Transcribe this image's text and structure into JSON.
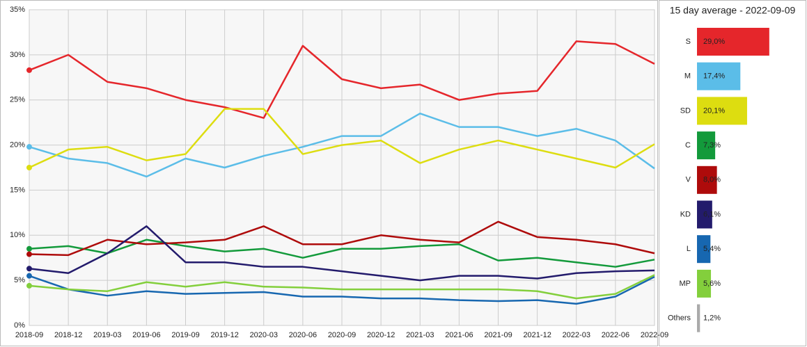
{
  "chart_data": [
    {
      "type": "line",
      "x": [
        "2018-09",
        "2018-12",
        "2019-03",
        "2019-06",
        "2019-09",
        "2019-12",
        "2020-03",
        "2020-06",
        "2020-09",
        "2020-12",
        "2021-03",
        "2021-06",
        "2021-09",
        "2021-12",
        "2022-03",
        "2022-06",
        "2022-09"
      ],
      "ylim": [
        0,
        35
      ],
      "yticks": [
        {
          "value": 0,
          "label": "0%"
        },
        {
          "value": 5,
          "label": "5%"
        },
        {
          "value": 10,
          "label": "10%"
        },
        {
          "value": 15,
          "label": "15%"
        },
        {
          "value": 20,
          "label": "20%"
        },
        {
          "value": 25,
          "label": "25%"
        },
        {
          "value": 30,
          "label": "30%"
        },
        {
          "value": 35,
          "label": "35%"
        }
      ],
      "grid": true,
      "series": [
        {
          "name": "S",
          "color": "#e5262b",
          "values": [
            28.3,
            30.0,
            27.0,
            26.3,
            25.0,
            24.2,
            23.0,
            31.0,
            27.3,
            26.3,
            26.7,
            25.0,
            25.7,
            26.0,
            31.5,
            31.2,
            29.0
          ]
        },
        {
          "name": "M",
          "color": "#5bbde8",
          "values": [
            19.8,
            18.5,
            18.0,
            16.5,
            18.5,
            17.5,
            18.8,
            19.8,
            21.0,
            21.0,
            23.5,
            22.0,
            22.0,
            21.0,
            21.8,
            20.5,
            17.4
          ]
        },
        {
          "name": "SD",
          "color": "#dddd10",
          "values": [
            17.5,
            19.5,
            19.8,
            18.3,
            19.0,
            24.0,
            24.0,
            19.0,
            20.0,
            20.5,
            18.0,
            19.5,
            20.5,
            19.5,
            18.5,
            17.5,
            20.1
          ]
        },
        {
          "name": "C",
          "color": "#139a3b",
          "values": [
            8.5,
            8.8,
            8.0,
            9.5,
            8.8,
            8.2,
            8.5,
            7.5,
            8.5,
            8.5,
            8.8,
            9.0,
            7.2,
            7.5,
            7.0,
            6.5,
            7.3
          ]
        },
        {
          "name": "V",
          "color": "#ae0b0b",
          "values": [
            7.9,
            7.8,
            9.5,
            9.0,
            9.2,
            9.5,
            11.0,
            9.0,
            9.0,
            10.0,
            9.5,
            9.2,
            11.5,
            9.8,
            9.5,
            9.0,
            8.0
          ]
        },
        {
          "name": "KD",
          "color": "#231b6c",
          "values": [
            6.3,
            5.8,
            8.0,
            11.0,
            7.0,
            7.0,
            6.5,
            6.5,
            6.0,
            5.5,
            5.0,
            5.5,
            5.5,
            5.2,
            5.8,
            6.0,
            6.1
          ]
        },
        {
          "name": "L",
          "color": "#1767b0",
          "values": [
            5.5,
            4.0,
            3.3,
            3.8,
            3.5,
            3.6,
            3.7,
            3.2,
            3.2,
            3.0,
            3.0,
            2.8,
            2.7,
            2.8,
            2.4,
            3.2,
            5.4
          ]
        },
        {
          "name": "MP",
          "color": "#83cf3c",
          "values": [
            4.4,
            4.0,
            3.8,
            4.8,
            4.3,
            4.8,
            4.3,
            4.2,
            4.0,
            4.0,
            4.0,
            4.0,
            4.0,
            3.8,
            3.0,
            3.5,
            5.6
          ]
        }
      ]
    },
    {
      "type": "hbar",
      "title": "15 day average - 2022-09-09",
      "categories": [
        "S",
        "M",
        "SD",
        "C",
        "V",
        "KD",
        "L",
        "MP",
        "Others"
      ],
      "values": [
        29.0,
        17.4,
        20.1,
        7.3,
        8.0,
        6.1,
        5.4,
        5.6,
        1.2
      ],
      "value_labels": [
        "29,0%",
        "17,4%",
        "20,1%",
        "7,3%",
        "8,0%",
        "6,1%",
        "5,4%",
        "5,6%",
        "1,2%"
      ],
      "colors": [
        "#e5262b",
        "#5bbde8",
        "#dddd10",
        "#139a3b",
        "#ae0b0b",
        "#231b6c",
        "#1767b0",
        "#83cf3c",
        "#aaaaaa"
      ]
    }
  ]
}
